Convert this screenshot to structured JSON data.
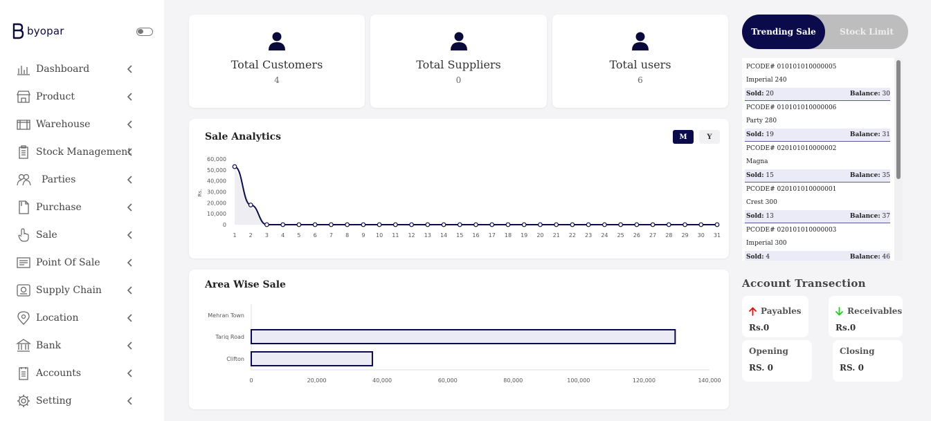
{
  "brand": {
    "name": "byopar"
  },
  "sidebar": {
    "items": [
      {
        "label": "Dashboard",
        "icon": "bar-chart-icon"
      },
      {
        "label": "Product",
        "icon": "store-icon"
      },
      {
        "label": "Warehouse",
        "icon": "warehouse-icon"
      },
      {
        "label": "Stock Management",
        "icon": "clipboard-icon"
      },
      {
        "label": "Parties",
        "icon": "people-icon"
      },
      {
        "label": "Purchase",
        "icon": "document-icon"
      },
      {
        "label": "Sale",
        "icon": "hand-pointer-icon"
      },
      {
        "label": "Point Of Sale",
        "icon": "receipt-icon"
      },
      {
        "label": "Supply Chain",
        "icon": "supply-chain-icon"
      },
      {
        "label": "Location",
        "icon": "location-pin-icon"
      },
      {
        "label": "Bank",
        "icon": "bank-icon"
      },
      {
        "label": "Accounts",
        "icon": "ledger-icon"
      },
      {
        "label": "Setting",
        "icon": "gear-icon"
      }
    ]
  },
  "stats": [
    {
      "title": "Total Customers",
      "value": "4"
    },
    {
      "title": "Total Suppliers",
      "value": "0"
    },
    {
      "title": "Total users",
      "value": "6"
    }
  ],
  "sale_analytics": {
    "title": "Sale Analytics",
    "toggle": {
      "month": "M",
      "year": "Y"
    }
  },
  "area_wise": {
    "title": "Area Wise Sale"
  },
  "chart_data": [
    {
      "type": "line",
      "title": "Sale Analytics",
      "ylabel": "Rs.",
      "ylim": [
        0,
        60000
      ],
      "y_ticks": [
        "0",
        "10,000",
        "20,000",
        "30,000",
        "40,000",
        "50,000",
        "60,000"
      ],
      "x": [
        1,
        2,
        3,
        4,
        5,
        6,
        7,
        8,
        9,
        10,
        11,
        12,
        13,
        14,
        15,
        16,
        17,
        18,
        19,
        20,
        21,
        22,
        23,
        24,
        25,
        26,
        27,
        28,
        29,
        30,
        31
      ],
      "series": [
        {
          "values": [
            53000,
            18000,
            0,
            0,
            0,
            0,
            0,
            0,
            0,
            0,
            0,
            0,
            0,
            0,
            0,
            0,
            0,
            0,
            0,
            0,
            0,
            0,
            0,
            0,
            0,
            0,
            0,
            0,
            0,
            0,
            0
          ]
        }
      ],
      "color": "#0b0b4b"
    },
    {
      "type": "bar",
      "orientation": "horizontal",
      "title": "Area Wise Sale",
      "categories": [
        "Mehran Town",
        "Tariq Road",
        "Clifton"
      ],
      "values": [
        0,
        129500,
        37000
      ],
      "xlim": [
        0,
        140000
      ],
      "x_ticks": [
        "0",
        "20,000",
        "40,000",
        "60,000",
        "80,000",
        "100,000",
        "120,000",
        "140,000"
      ],
      "bar_fill": "#ebebf5",
      "bar_stroke": "#0b0b4b"
    }
  ],
  "trending": {
    "tabs": {
      "active": "Trending Sale",
      "inactive": "Stock Limit"
    },
    "sold_label": "Sold:",
    "balance_label": "Balance:",
    "items": [
      {
        "code": "PCODE# 010101010000005",
        "name": "Imperial 240",
        "sold": "20",
        "balance": "30"
      },
      {
        "code": "PCODE# 010101010000006",
        "name": "Party 280",
        "sold": "19",
        "balance": "31"
      },
      {
        "code": "PCODE# 020101010000002",
        "name": "Magna",
        "sold": "15",
        "balance": "35"
      },
      {
        "code": "PCODE# 020101010000001",
        "name": "Crest 300",
        "sold": "13",
        "balance": "37"
      },
      {
        "code": "PCODE# 020101010000003",
        "name": "Imperial 300",
        "sold": "4",
        "balance": "46"
      }
    ]
  },
  "accounts": {
    "title": "Account Transection",
    "payables": {
      "label": "Payables",
      "value": "Rs.0",
      "arrow_color": "#ff0000"
    },
    "receivables": {
      "label": "Receivables",
      "value": "Rs.0",
      "arrow_color": "#22cc22"
    },
    "opening": {
      "label": "Opening",
      "value": "RS. 0"
    },
    "closing": {
      "label": "Closing",
      "value": "RS. 0"
    }
  }
}
